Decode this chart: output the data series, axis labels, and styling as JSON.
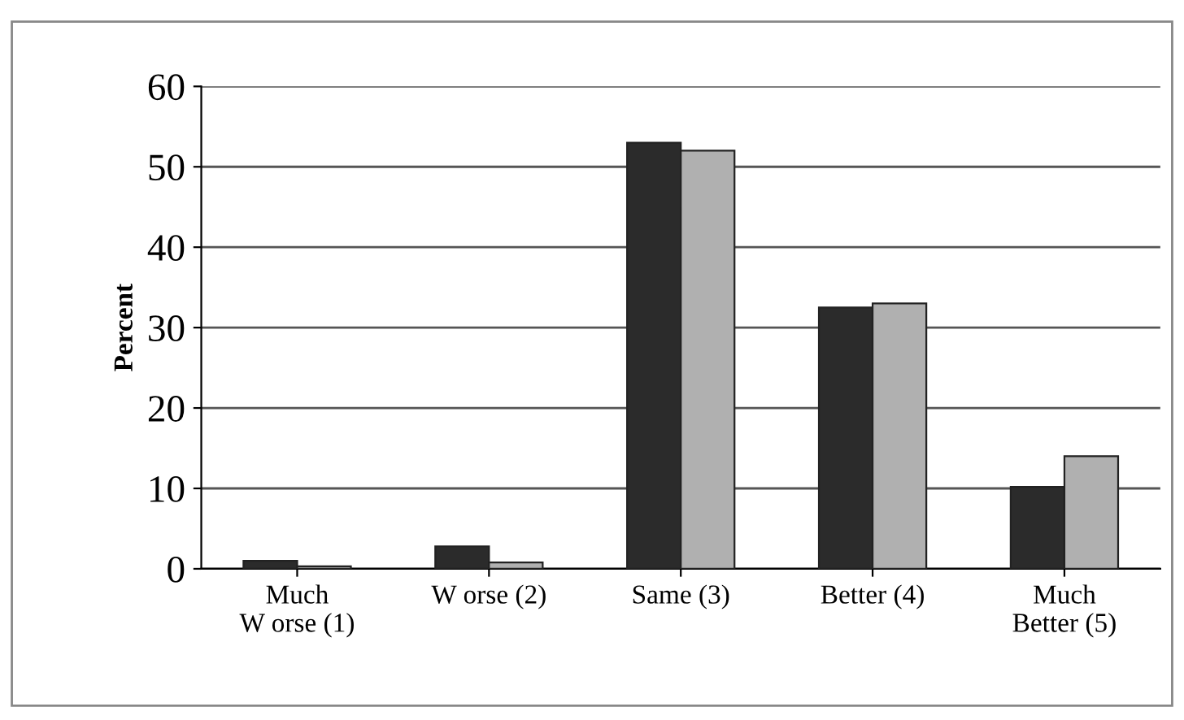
{
  "chart_data": {
    "type": "bar",
    "ylabel": "Percent",
    "categories": [
      "Much\nW orse (1)",
      "W orse (2)",
      "Same (3)",
      "Better (4)",
      "Much\nBetter (5)"
    ],
    "series": [
      {
        "color": "#2b2b2b",
        "values": [
          1,
          2.8,
          53,
          32.5,
          10.2
        ]
      },
      {
        "color": "#b0b0b0",
        "values": [
          0.3,
          0.8,
          52,
          33,
          14
        ]
      }
    ],
    "ylim": [
      0,
      60
    ],
    "yticks": [
      0,
      10,
      20,
      30,
      40,
      50,
      60
    ],
    "grid": "y"
  }
}
